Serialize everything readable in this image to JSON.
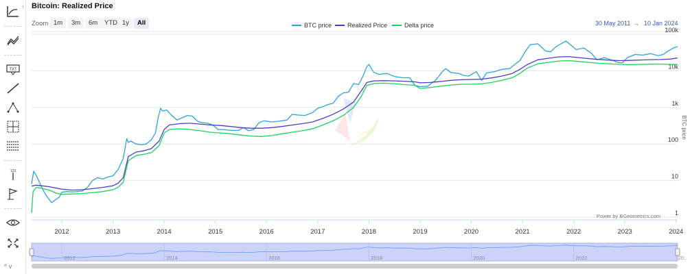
{
  "title": "Bitcoin: Realized Price",
  "zoom": {
    "label": "Zoom",
    "buttons": [
      "1m",
      "3m",
      "6m",
      "YTD",
      "1y",
      "All"
    ],
    "active": "All"
  },
  "legend": [
    {
      "name": "BTC price",
      "color": "#2ba3e0"
    },
    {
      "name": "Realized Price",
      "color": "#4b3cc8"
    },
    {
      "name": "Delta price",
      "color": "#18d35e"
    }
  ],
  "range": {
    "from": "30 May 2011",
    "arrow": "→",
    "to": "10 Jan 2024"
  },
  "toolbar_icons": [
    "indicator-icon",
    "trend-lines-icon",
    "text-annotation-icon",
    "line-icon",
    "fibonacci-icon",
    "crosshair-measure-icon",
    "table-icon",
    "vertical-counter-icon",
    "flag-icon",
    "eye-toggle-icon",
    "fullscreen-icon"
  ],
  "toolbar_bottom": "^ v",
  "credit": "Power by BGeometrics.com",
  "chart_data": {
    "type": "line",
    "title": "Bitcoin: Realized Price",
    "ylabel": "BTC price",
    "yscale": "log",
    "ylim": [
      1,
      100000
    ],
    "yticks": [
      {
        "v": 1,
        "label": "1"
      },
      {
        "v": 10,
        "label": "10"
      },
      {
        "v": 100,
        "label": "100"
      },
      {
        "v": 1000,
        "label": "1k"
      },
      {
        "v": 10000,
        "label": "10k"
      },
      {
        "v": 100000,
        "label": "100k"
      }
    ],
    "xlim": [
      2011.41,
      2024.03
    ],
    "xticks": [
      "2012",
      "2013",
      "2014",
      "2015",
      "2016",
      "2017",
      "2018",
      "2019",
      "2020",
      "2021",
      "2022",
      "2023",
      "2024"
    ],
    "series": [
      {
        "name": "BTC price",
        "color": "#2ba3e0",
        "x": [
          2011.41,
          2011.45,
          2011.5,
          2011.58,
          2011.65,
          2011.72,
          2011.8,
          2011.88,
          2011.95,
          2012.0,
          2012.1,
          2012.2,
          2012.3,
          2012.4,
          2012.5,
          2012.6,
          2012.7,
          2012.8,
          2012.9,
          2013.0,
          2013.1,
          2013.2,
          2013.27,
          2013.3,
          2013.35,
          2013.45,
          2013.55,
          2013.65,
          2013.75,
          2013.83,
          2013.88,
          2013.93,
          2013.97,
          2014.05,
          2014.15,
          2014.25,
          2014.35,
          2014.45,
          2014.55,
          2014.65,
          2014.75,
          2014.85,
          2014.95,
          2015.05,
          2015.15,
          2015.3,
          2015.45,
          2015.55,
          2015.65,
          2015.75,
          2015.85,
          2015.95,
          2016.1,
          2016.25,
          2016.4,
          2016.5,
          2016.6,
          2016.75,
          2016.9,
          2017.0,
          2017.1,
          2017.2,
          2017.3,
          2017.4,
          2017.5,
          2017.6,
          2017.7,
          2017.8,
          2017.88,
          2017.96,
          2018.0,
          2018.05,
          2018.1,
          2018.2,
          2018.35,
          2018.5,
          2018.65,
          2018.8,
          2018.9,
          2019.0,
          2019.15,
          2019.3,
          2019.45,
          2019.5,
          2019.6,
          2019.75,
          2019.85,
          2019.95,
          2020.1,
          2020.2,
          2020.3,
          2020.45,
          2020.6,
          2020.75,
          2020.85,
          2020.95,
          2021.05,
          2021.15,
          2021.3,
          2021.45,
          2021.55,
          2021.65,
          2021.75,
          2021.85,
          2021.95,
          2022.05,
          2022.2,
          2022.35,
          2022.45,
          2022.6,
          2022.75,
          2022.87,
          2022.95,
          2023.05,
          2023.2,
          2023.35,
          2023.5,
          2023.65,
          2023.75,
          2023.85,
          2023.95,
          2024.03
        ],
        "values": [
          8,
          18,
          14,
          8,
          5,
          3.5,
          2.5,
          3,
          3.5,
          4.8,
          5,
          4.9,
          5,
          5.2,
          6.5,
          10,
          12,
          11,
          12.5,
          13.5,
          20,
          40,
          140,
          110,
          120,
          100,
          95,
          100,
          130,
          200,
          500,
          950,
          800,
          850,
          600,
          450,
          520,
          600,
          580,
          420,
          380,
          370,
          330,
          250,
          250,
          235,
          235,
          280,
          230,
          250,
          380,
          430,
          400,
          420,
          450,
          650,
          620,
          600,
          720,
          950,
          1050,
          1200,
          1300,
          2000,
          2500,
          2600,
          4500,
          4200,
          7000,
          13000,
          15000,
          11500,
          9000,
          8000,
          8500,
          7000,
          6500,
          6400,
          4000,
          3700,
          3800,
          5500,
          10000,
          11500,
          9000,
          8500,
          7500,
          7200,
          9500,
          5500,
          8800,
          9500,
          11000,
          11500,
          15000,
          19000,
          33000,
          52000,
          55000,
          35000,
          33000,
          45000,
          55000,
          65000,
          50000,
          38000,
          42000,
          30000,
          20000,
          23000,
          19500,
          16800,
          16500,
          23000,
          28000,
          27000,
          29500,
          26000,
          28000,
          35000,
          42000,
          46500
        ]
      },
      {
        "name": "Realized Price",
        "color": "#4b3cc8",
        "x": [
          2011.41,
          2011.5,
          2011.6,
          2011.75,
          2011.9,
          2012.0,
          2012.2,
          2012.4,
          2012.6,
          2012.8,
          2013.0,
          2013.1,
          2013.2,
          2013.3,
          2013.45,
          2013.6,
          2013.75,
          2013.9,
          2014.0,
          2014.1,
          2014.3,
          2014.5,
          2014.7,
          2014.9,
          2015.1,
          2015.3,
          2015.5,
          2015.7,
          2015.9,
          2016.1,
          2016.3,
          2016.5,
          2016.7,
          2016.9,
          2017.1,
          2017.3,
          2017.5,
          2017.7,
          2017.85,
          2017.96,
          2018.1,
          2018.3,
          2018.5,
          2018.7,
          2018.9,
          2019.0,
          2019.2,
          2019.4,
          2019.6,
          2019.8,
          2020.0,
          2020.2,
          2020.4,
          2020.6,
          2020.8,
          2020.95,
          2021.1,
          2021.3,
          2021.5,
          2021.7,
          2021.9,
          2022.1,
          2022.3,
          2022.5,
          2022.7,
          2022.9,
          2023.1,
          2023.3,
          2023.5,
          2023.7,
          2023.9,
          2024.03
        ],
        "values": [
          7,
          7.5,
          7.2,
          6.8,
          6.2,
          5.8,
          5.5,
          5.6,
          6,
          6.5,
          7.2,
          8.5,
          12,
          45,
          60,
          65,
          75,
          120,
          250,
          330,
          360,
          370,
          350,
          330,
          320,
          300,
          280,
          270,
          270,
          280,
          300,
          330,
          360,
          400,
          500,
          650,
          900,
          1400,
          2800,
          4800,
          5300,
          5400,
          5300,
          5200,
          5000,
          4700,
          4800,
          5100,
          5500,
          5700,
          5800,
          5900,
          6400,
          7200,
          8500,
          11000,
          15000,
          20000,
          22000,
          24000,
          24500,
          23000,
          21500,
          20500,
          19500,
          19000,
          19300,
          19800,
          20200,
          20400,
          21000,
          22500
        ]
      },
      {
        "name": "Delta price",
        "color": "#18d35e",
        "x": [
          2011.41,
          2011.44,
          2011.5,
          2011.6,
          2011.75,
          2011.9,
          2012.0,
          2012.2,
          2012.4,
          2012.6,
          2012.8,
          2013.0,
          2013.1,
          2013.2,
          2013.3,
          2013.45,
          2013.6,
          2013.75,
          2013.9,
          2014.0,
          2014.1,
          2014.3,
          2014.5,
          2014.7,
          2014.9,
          2015.1,
          2015.3,
          2015.5,
          2015.7,
          2015.9,
          2016.1,
          2016.3,
          2016.5,
          2016.7,
          2016.9,
          2017.1,
          2017.3,
          2017.5,
          2017.7,
          2017.85,
          2017.96,
          2018.1,
          2018.3,
          2018.5,
          2018.7,
          2018.9,
          2019.0,
          2019.2,
          2019.4,
          2019.6,
          2019.8,
          2020.0,
          2020.2,
          2020.4,
          2020.6,
          2020.8,
          2020.95,
          2021.1,
          2021.3,
          2021.5,
          2021.7,
          2021.9,
          2022.1,
          2022.3,
          2022.5,
          2022.7,
          2022.9,
          2023.1,
          2023.3,
          2023.5,
          2023.7,
          2023.9,
          2024.03
        ],
        "values": [
          1.3,
          5,
          6.5,
          6.2,
          5.5,
          4.5,
          4.2,
          4.3,
          4.4,
          4.7,
          5,
          5.6,
          6.5,
          9,
          35,
          48,
          52,
          58,
          90,
          200,
          250,
          260,
          250,
          230,
          210,
          200,
          190,
          175,
          165,
          160,
          170,
          190,
          210,
          230,
          260,
          330,
          430,
          600,
          1000,
          2000,
          4000,
          4500,
          4600,
          4400,
          4200,
          4000,
          3300,
          3500,
          3800,
          4100,
          4300,
          4300,
          4400,
          4800,
          5500,
          6500,
          8500,
          12000,
          15500,
          17000,
          18500,
          19000,
          18000,
          17000,
          16000,
          15500,
          15000,
          14800,
          15000,
          15200,
          15300,
          15000,
          14800
        ]
      }
    ],
    "navigator": {
      "xticks": [
        "2012",
        "2014",
        "2016",
        "2018",
        "2020",
        "2022",
        "20.."
      ]
    }
  }
}
